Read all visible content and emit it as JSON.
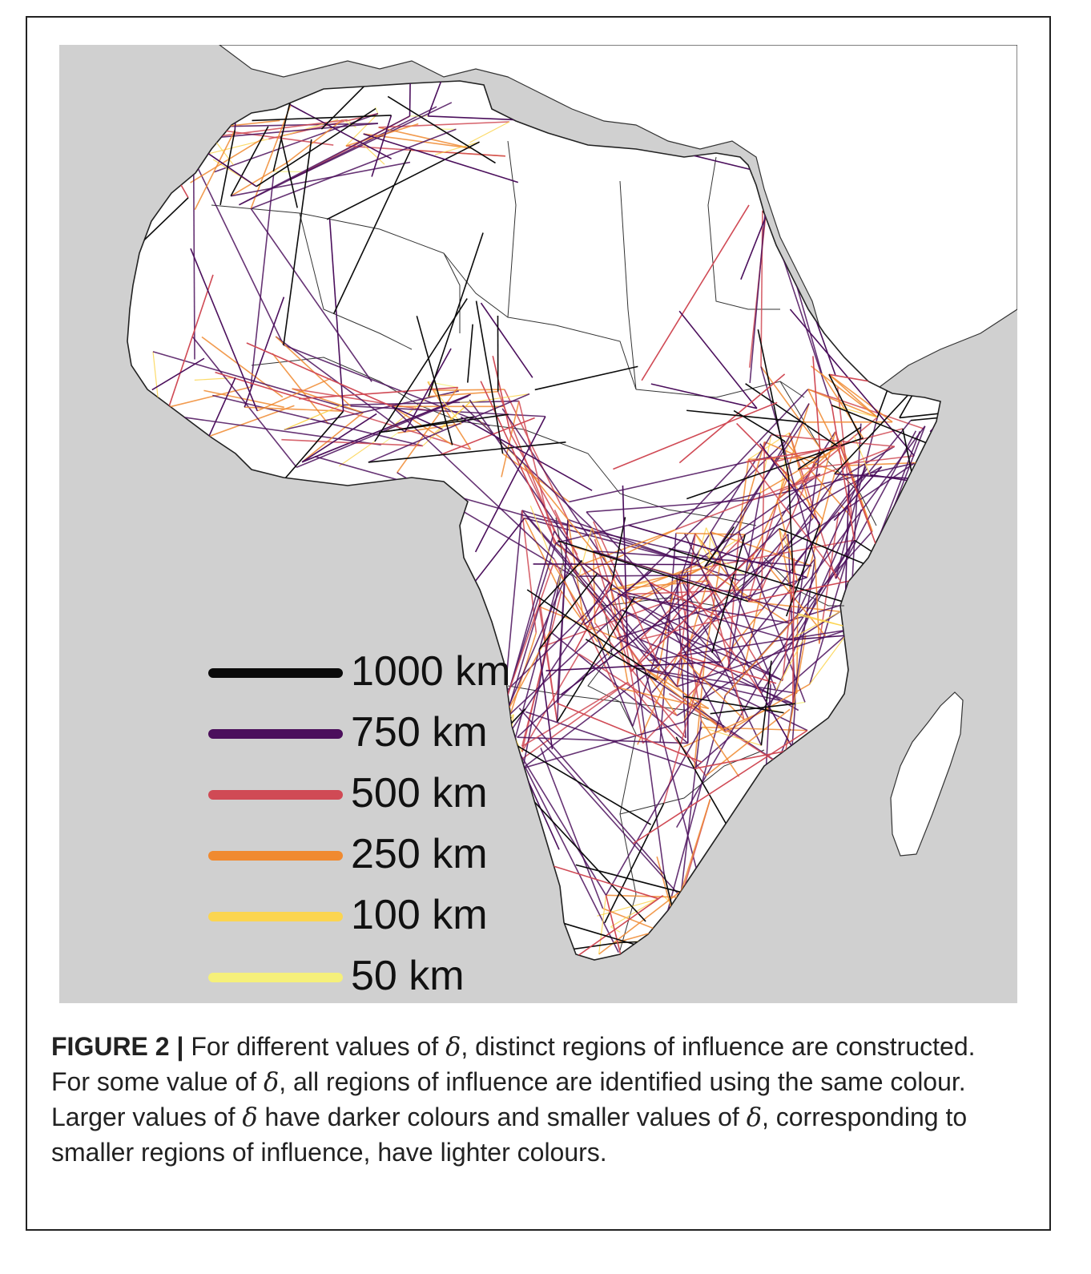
{
  "figure": {
    "legend": [
      {
        "label": "1000 km",
        "color": "#0a0a0a"
      },
      {
        "label": "750 km",
        "color": "#4b0f5c"
      },
      {
        "label": "500 km",
        "color": "#d04a55"
      },
      {
        "label": "250 km",
        "color": "#f08a30"
      },
      {
        "label": "100 km",
        "color": "#fbd550"
      },
      {
        "label": "50 km",
        "color": "#f5f07a"
      }
    ],
    "caption": {
      "label": "FIGURE 2 |",
      "segments": [
        " For different values of ",
        "δ",
        ", distinct regions of influence are constructed. For some value of ",
        "δ",
        ", all regions of influence are identified using the same colour. Larger values of ",
        "δ",
        " have darker colours and smaller values of ",
        "δ",
        ", corresponding to smaller regions of influence, have lighter colours."
      ]
    },
    "colors": {
      "ocean": "#d0d0d0",
      "land": "#ffffff",
      "border": "#333333"
    },
    "icons": [
      "africa-map",
      "region-network"
    ]
  }
}
